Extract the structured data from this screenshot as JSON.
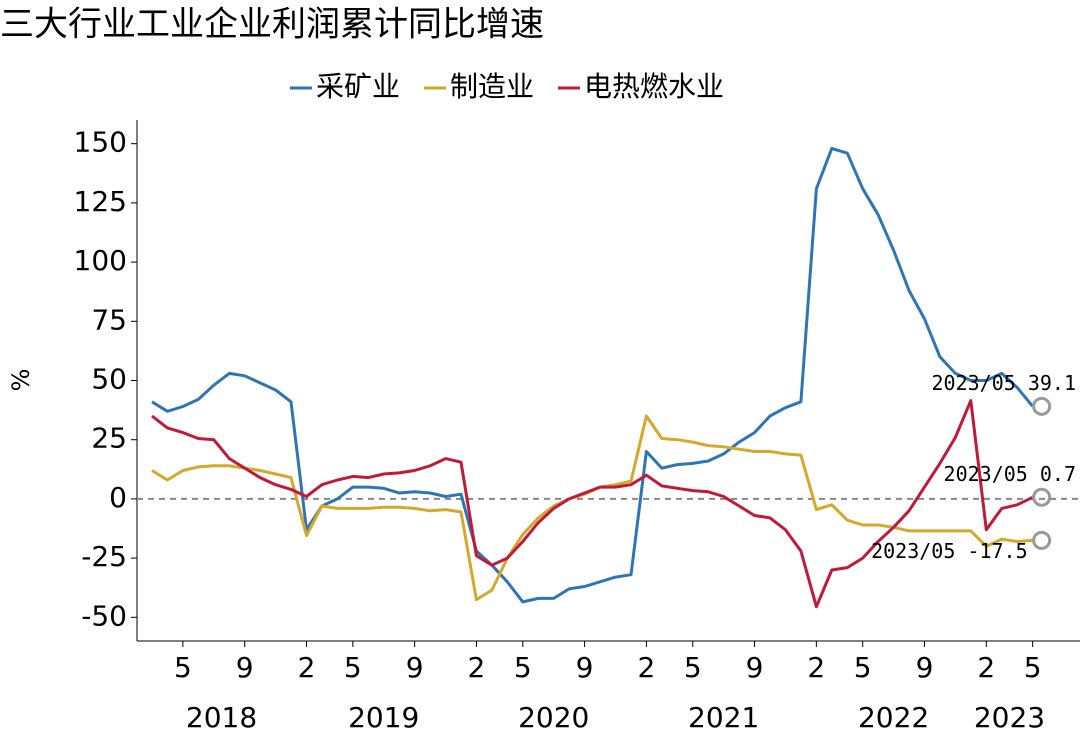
{
  "chart_data": {
    "type": "line",
    "title": "三大行业工业企业利润累计同比增速",
    "y_label": "%",
    "categories": [
      null,
      null,
      "5",
      null,
      null,
      null,
      "9",
      null,
      null,
      null,
      "2",
      null,
      null,
      "5",
      null,
      null,
      null,
      "9",
      null,
      null,
      null,
      "2",
      null,
      null,
      "5",
      null,
      null,
      null,
      "9",
      null,
      null,
      null,
      "2",
      null,
      null,
      "5",
      null,
      null,
      null,
      "9",
      null,
      null,
      null,
      "2",
      null,
      null,
      "5",
      null,
      null,
      null,
      "9",
      null,
      null,
      null,
      "2",
      null,
      null,
      "5"
    ],
    "years": [
      "2018",
      "2019",
      "2020",
      "2021",
      "2022",
      "2023"
    ],
    "series": [
      {
        "name": "采矿业",
        "color": "#2e75b6",
        "end_label": "2023/05 39.1",
        "values": [
          41,
          37,
          39,
          42,
          48,
          53,
          52,
          49,
          46,
          41,
          -13,
          -3,
          0,
          5,
          5,
          4.5,
          2.5,
          3,
          2.5,
          1,
          2,
          -22,
          -28,
          -35,
          -43.5,
          -42,
          -42,
          -38,
          -37,
          -35,
          -33,
          -32,
          20,
          13,
          14.5,
          15,
          16,
          19,
          24,
          28,
          35,
          38.5,
          41,
          131,
          148,
          146,
          131,
          120,
          105,
          88,
          76,
          60,
          53,
          50,
          50,
          53,
          47,
          39.1
        ]
      },
      {
        "name": "制造业",
        "color": "#d4a82a",
        "end_label": "2023/05 -17.5",
        "values": [
          12,
          8,
          12,
          13.5,
          14,
          14,
          13,
          12,
          10.5,
          9,
          -15.5,
          -3,
          -4,
          -4,
          -4,
          -3.5,
          -3.5,
          -4,
          -5,
          -4.5,
          -5.5,
          -42.5,
          -38.5,
          -25,
          -15,
          -8,
          -3,
          0,
          2,
          5,
          6,
          7.5,
          35,
          25.5,
          25,
          24,
          22.5,
          22,
          21,
          20,
          20,
          19,
          18.5,
          -4.5,
          -2.5,
          -9,
          -11,
          -11,
          -12,
          -13.5,
          -13.5,
          -13.5,
          -13.5,
          -13.5,
          -20,
          -17,
          -18,
          -17.5
        ]
      },
      {
        "name": "电热燃水业",
        "color": "#c0193a",
        "end_label": "2023/05 0.7",
        "values": [
          35,
          30,
          28,
          25.5,
          25,
          17,
          13,
          9,
          6,
          4,
          1,
          6,
          8,
          9.5,
          9,
          10.5,
          11,
          12,
          14,
          17,
          15.5,
          -24,
          -28,
          -25,
          -18,
          -10,
          -4,
          0,
          2.5,
          5,
          5,
          6,
          10,
          5.5,
          4.5,
          3.5,
          3,
          1,
          -3,
          -7,
          -8,
          -13,
          -22,
          -45.5,
          -30,
          -29,
          -25,
          -18,
          -12,
          -5,
          5,
          15,
          26,
          41.5,
          -13,
          -4,
          -2.5,
          0.7
        ]
      }
    ],
    "ylim": [
      -60,
      160
    ],
    "yticks": [
      -50,
      -25,
      0,
      25,
      50,
      75,
      100,
      125,
      150
    ],
    "zero_line": true
  }
}
